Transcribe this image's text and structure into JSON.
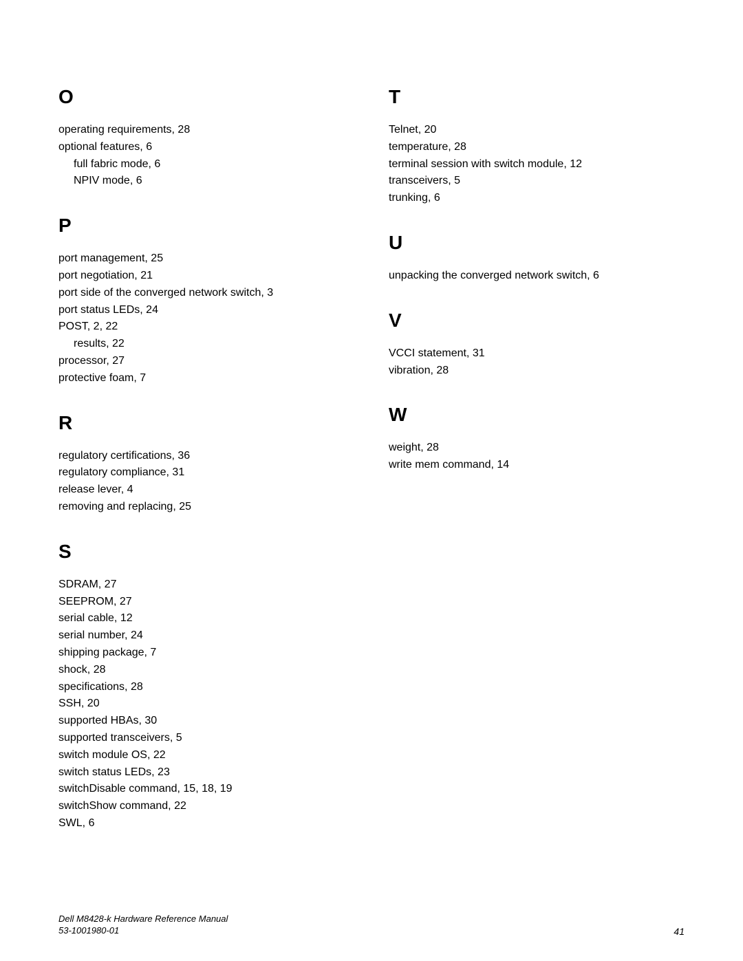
{
  "left": {
    "O": {
      "letter": "O",
      "entries": [
        {
          "text": "operating requirements, 28"
        },
        {
          "text": "optional features, 6"
        },
        {
          "text": "full fabric mode, 6",
          "sub": true
        },
        {
          "text": "NPIV mode, 6",
          "sub": true
        }
      ]
    },
    "P": {
      "letter": "P",
      "entries": [
        {
          "text": "port management, 25"
        },
        {
          "text": "port negotiation, 21"
        },
        {
          "text": "port side of the converged network switch, 3"
        },
        {
          "text": "port status LEDs, 24"
        },
        {
          "text": "POST, 2, 22"
        },
        {
          "text": "results, 22",
          "sub": true
        },
        {
          "text": "processor, 27"
        },
        {
          "text": "protective foam, 7"
        }
      ]
    },
    "R": {
      "letter": "R",
      "entries": [
        {
          "text": "regulatory certifications, 36"
        },
        {
          "text": "regulatory compliance, 31"
        },
        {
          "text": "release lever, 4"
        },
        {
          "text": "removing and replacing, 25"
        }
      ]
    },
    "S": {
      "letter": "S",
      "entries": [
        {
          "text": "SDRAM, 27"
        },
        {
          "text": "SEEPROM, 27"
        },
        {
          "text": "serial cable, 12"
        },
        {
          "text": "serial number, 24"
        },
        {
          "text": "shipping package, 7"
        },
        {
          "text": "shock, 28"
        },
        {
          "text": "specifications, 28"
        },
        {
          "text": "SSH, 20"
        },
        {
          "text": "supported HBAs, 30"
        },
        {
          "text": "supported transceivers, 5"
        },
        {
          "text": "switch module OS, 22"
        },
        {
          "text": "switch status LEDs, 23"
        },
        {
          "text": "switchDisable command, 15, 18, 19"
        },
        {
          "text": "switchShow command, 22"
        },
        {
          "text": "SWL, 6"
        }
      ]
    }
  },
  "right": {
    "T": {
      "letter": "T",
      "entries": [
        {
          "text": "Telnet, 20"
        },
        {
          "text": "temperature, 28"
        },
        {
          "text": "terminal session with switch module, 12"
        },
        {
          "text": "transceivers, 5"
        },
        {
          "text": "trunking, 6"
        }
      ]
    },
    "U": {
      "letter": "U",
      "entries": [
        {
          "text": "unpacking the converged network switch, 6"
        }
      ]
    },
    "V": {
      "letter": "V",
      "entries": [
        {
          "text": "VCCI statement, 31"
        },
        {
          "text": "vibration, 28"
        }
      ]
    },
    "W": {
      "letter": "W",
      "entries": [
        {
          "text": "weight, 28"
        },
        {
          "text": "write mem command, 14"
        }
      ]
    }
  },
  "footer": {
    "line1": "Dell M8428-k Hardware Reference Manual",
    "line2": "53-1001980-01",
    "page": "41"
  }
}
